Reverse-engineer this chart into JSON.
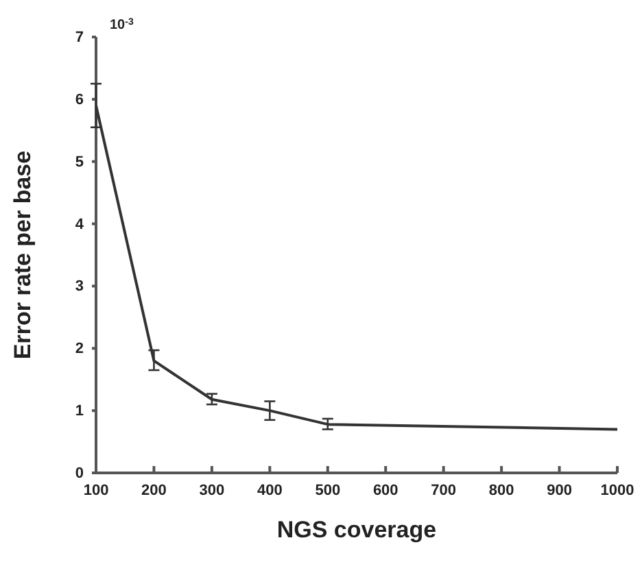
{
  "chart_data": {
    "type": "line",
    "xlabel": "NGS coverage",
    "ylabel": "Error rate per base",
    "annotations": [
      "10$^{-3}$"
    ],
    "x": [
      100,
      200,
      300,
      400,
      500,
      1000
    ],
    "series": [
      {
        "color": "#333333",
        "values": [
          5.9,
          1.8,
          1.18,
          1.0,
          0.78,
          0.7
        ],
        "errors": [
          [
            5.55,
            6.25
          ],
          [
            1.65,
            1.97
          ],
          [
            1.1,
            1.27
          ],
          [
            0.85,
            1.15
          ],
          [
            0.7,
            0.87
          ],
          null
        ]
      }
    ],
    "xlim": [
      100,
      1000
    ],
    "xticks": [
      100,
      200,
      300,
      400,
      500,
      600,
      700,
      800,
      900,
      1000
    ],
    "ylim": [
      0,
      7
    ],
    "yticks": [
      0,
      1,
      2,
      3,
      4,
      5,
      6,
      7
    ],
    "grid": false,
    "marker": "none",
    "line_style": "solid"
  }
}
